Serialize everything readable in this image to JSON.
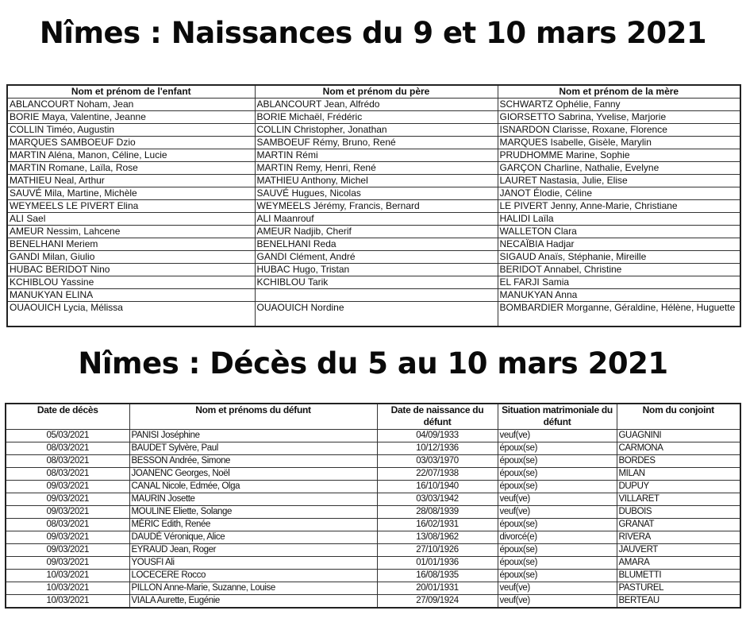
{
  "births": {
    "title": "Nîmes : Naissances du 9 et 10 mars 2021",
    "headers": [
      "Nom et prénom de l'enfant",
      "Nom et prénom du père",
      "Nom et prénom de la mère"
    ],
    "rows": [
      [
        "ABLANCOURT Noham, Jean",
        "ABLANCOURT Jean, Alfrédo",
        "SCHWARTZ Ophélie, Fanny"
      ],
      [
        "BORIE Maya, Valentine, Jeanne",
        "BORIE Michaël, Frédéric",
        "GIORSETTO Sabrina, Yvelise, Marjorie"
      ],
      [
        "COLLIN Timéo, Augustin",
        "COLLIN Christopher, Jonathan",
        "ISNARDON Clarisse, Roxane, Florence"
      ],
      [
        "MARQUES SAMBOEUF Dzio",
        "SAMBOEUF Rémy, Bruno, René",
        "MARQUES Isabelle, Gisèle, Marylin"
      ],
      [
        "MARTIN Aléna, Manon, Céline, Lucie",
        "MARTIN Rémi",
        "PRUDHOMME Marine, Sophie"
      ],
      [
        "MARTIN Romane, Laïla, Rose",
        "MARTIN Remy, Henri, René",
        "GARÇON Charline, Nathalie, Evelyne"
      ],
      [
        "MATHIEU Neal, Arthur",
        "MATHIEU Anthony, Michel",
        "LAURET Nastasia, Julie, Elise"
      ],
      [
        "SAUVÉ Mila, Martine, Michèle",
        "SAUVÉ Hugues, Nicolas",
        "JANOT Élodie, Céline"
      ],
      [
        "WEYMEELS LE PIVERT Elina",
        "WEYMEELS Jérémy, Francis, Bernard",
        "LE PIVERT Jenny, Anne-Marie, Christiane"
      ],
      [
        "ALI Sael",
        "ALI Maanrouf",
        "HALIDI Laïla"
      ],
      [
        "AMEUR Nessim, Lahcene",
        "AMEUR Nadjib, Cherif",
        "WALLETON Clara"
      ],
      [
        "BENELHANI Meriem",
        "BENELHANI Reda",
        "NECAÏBIA Hadjar"
      ],
      [
        "GANDI Milan, Giulio",
        "GANDI Clément, André",
        "SIGAUD Anaïs, Stéphanie, Mireille"
      ],
      [
        "HUBAC BERIDOT Nino",
        "HUBAC Hugo, Tristan",
        "BERIDOT Annabel, Christine"
      ],
      [
        "KCHIBLOU Yassine",
        "KCHIBLOU Tarik",
        "EL FARJI Samia"
      ],
      [
        "MANUKYAN ELINA",
        "",
        "MANUKYAN Anna"
      ],
      [
        "OUAOUICH Lycia, Mélissa",
        "OUAOUICH Nordine",
        "BOMBARDIER Morganne, Géraldine, Hélène, Huguette"
      ]
    ]
  },
  "deaths": {
    "title": "Nîmes : Décès du 5 au 10 mars 2021",
    "headers": [
      "Date de décès",
      "Nom et prénoms du défunt",
      "Date de naissance du défunt",
      "Situation matrimoniale du défunt",
      "Nom du conjoint"
    ],
    "rows": [
      [
        "05/03/2021",
        "PANISI Joséphine",
        "04/09/1933",
        "veuf(ve)",
        "GUAGNINI"
      ],
      [
        "08/03/2021",
        "BAUDET Sylvère, Paul",
        "10/12/1936",
        "époux(se)",
        "CARMONA"
      ],
      [
        "08/03/2021",
        "BESSON Andrée, Simone",
        "03/03/1970",
        "époux(se)",
        "BORDES"
      ],
      [
        "08/03/2021",
        "JOANENC Georges, Noël",
        "22/07/1938",
        "époux(se)",
        "MILAN"
      ],
      [
        "09/03/2021",
        "CANAL Nicole, Edmée, Olga",
        "16/10/1940",
        "époux(se)",
        "DUPUY"
      ],
      [
        "09/03/2021",
        "MAURIN Josette",
        "03/03/1942",
        "veuf(ve)",
        "VILLARET"
      ],
      [
        "09/03/2021",
        "MOULINE Eliette, Solange",
        "28/08/1939",
        "veuf(ve)",
        "DUBOIS"
      ],
      [
        "08/03/2021",
        "MÉRIC Edith, Renée",
        "16/02/1931",
        "époux(se)",
        "GRANAT"
      ],
      [
        "09/03/2021",
        "DAUDÉ Véronique, Alice",
        "13/08/1962",
        "divorcé(e)",
        "RIVERA"
      ],
      [
        "09/03/2021",
        "EYRAUD Jean, Roger",
        "27/10/1926",
        "époux(se)",
        "JAUVERT"
      ],
      [
        "09/03/2021",
        "YOUSFI Ali",
        "01/01/1936",
        "époux(se)",
        "AMARA"
      ],
      [
        "10/03/2021",
        "LOCECERE Rocco",
        "16/08/1935",
        "époux(se)",
        "BLUMETTI"
      ],
      [
        "10/03/2021",
        "PILLON Anne-Marie, Suzanne, Louise",
        "20/01/1931",
        "veuf(ve)",
        "PASTUREL"
      ],
      [
        "10/03/2021",
        "VIALA Aurette, Eugénie",
        "27/09/1924",
        "veuf(ve)",
        "BERTEAU"
      ]
    ]
  }
}
